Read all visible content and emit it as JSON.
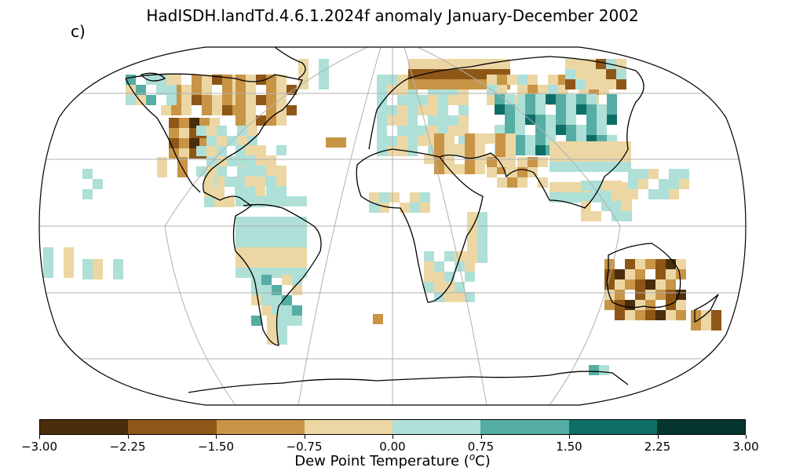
{
  "title": "HadISDH.landTd.4.6.1.2024f anomaly January-December 2002",
  "panel_label": "c)",
  "colorbar": {
    "label": "Dew Point Temperature (",
    "label_sup": "o",
    "label_end": "C)",
    "ticks": [
      "−3.00",
      "−2.25",
      "−1.50",
      "−0.75",
      "0.00",
      "0.75",
      "1.50",
      "2.25",
      "3.00"
    ],
    "colors": [
      "#4a2d0a",
      "#8e5718",
      "#c89446",
      "#ecd7a4",
      "#aee0d8",
      "#56ada3",
      "#0d6e66",
      "#04362f"
    ]
  },
  "chart_data": {
    "type": "heatmap",
    "projection": "Robinson",
    "variable": "Dew Point Temperature anomaly",
    "units": "°C",
    "period": "January-December 2002",
    "color_range": [
      -3.0,
      3.0
    ],
    "bins": [
      -3.0,
      -2.25,
      -1.5,
      -0.75,
      0.0,
      0.75,
      1.5,
      2.25,
      3.0
    ],
    "regions": [
      {
        "name": "western North America",
        "anomaly_class": "-1.50 to -0.75"
      },
      {
        "name": "northwestern North America interior",
        "anomaly_class": "-3.00 to -1.50"
      },
      {
        "name": "eastern North America",
        "anomaly_class": "0.00 to 0.75"
      },
      {
        "name": "Europe",
        "anomaly_class": "0.00 to 0.75"
      },
      {
        "name": "central Siberia",
        "anomaly_class": "0.75 to 2.25"
      },
      {
        "name": "northern Russia",
        "anomaly_class": "-1.50 to -0.75"
      },
      {
        "name": "Middle East / Central Asia",
        "anomaly_class": "-0.75 to 0.00"
      },
      {
        "name": "eastern China",
        "anomaly_class": "0.00 to 0.75"
      },
      {
        "name": "South America",
        "anomaly_class": "0.00 to 0.75"
      },
      {
        "name": "southern Africa",
        "anomaly_class": "-0.75 to 0.75"
      },
      {
        "name": "interior Australia",
        "anomaly_class": "-3.00 to -1.50"
      },
      {
        "name": "eastern Australia",
        "anomaly_class": "-1.50 to -0.75"
      },
      {
        "name": "New Zealand",
        "anomaly_class": "-1.50 to -0.75"
      }
    ]
  }
}
